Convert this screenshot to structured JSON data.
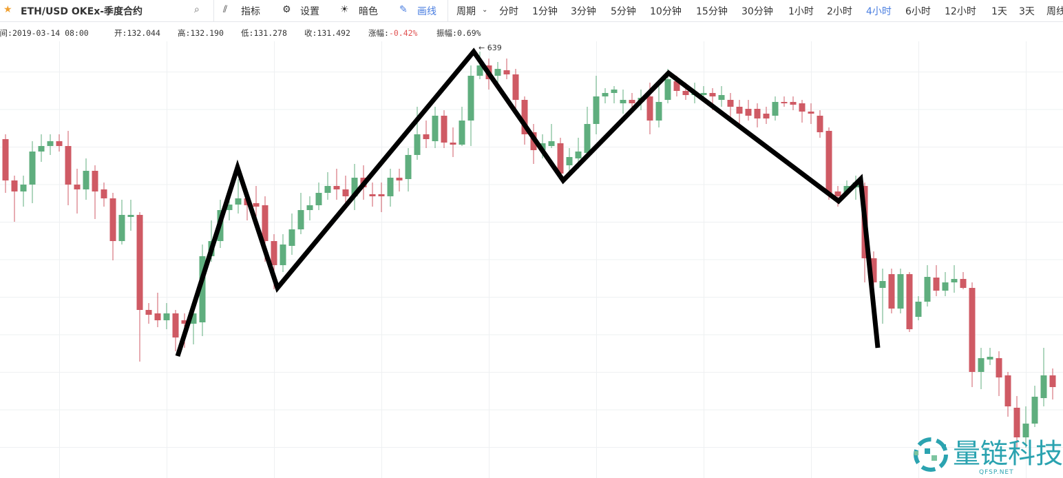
{
  "toolbar": {
    "symbol": "ETH/USD OKEx-季度合约",
    "tools": [
      "指标",
      "设置",
      "暗色",
      "画线"
    ],
    "period_label": "周期",
    "periods": [
      "分时",
      "1分钟",
      "3分钟",
      "5分钟",
      "10分钟",
      "15分钟",
      "30分钟",
      "1小时",
      "2小时",
      "4小时",
      "6小时",
      "12小时",
      "1天",
      "3天",
      "周线"
    ]
  },
  "info": [
    {
      "label": "时间:",
      "value": "2019-03-14 08:00"
    },
    {
      "label": "开:",
      "value": "132.044"
    },
    {
      "label": "高:",
      "value": "132.190"
    },
    {
      "label": "低:",
      "value": "131.278"
    },
    {
      "label": "收:",
      "value": "131.492"
    },
    {
      "label": "涨幅:",
      "value": "-0.42%"
    },
    {
      "label": "振幅:",
      "value": "0.69%"
    }
  ],
  "chart_data": {
    "type": "candlestick",
    "ylim": [
      127.12,
      139.8
    ],
    "up_color": "#5fae7e",
    "down_color": "#cf5a64",
    "max_label": "← 639",
    "candles": [
      [
        136.96,
        137.1,
        135.4,
        135.76
      ],
      [
        135.76,
        135.9,
        134.56,
        135.44
      ],
      [
        135.44,
        135.9,
        135,
        135.64
      ],
      [
        135.64,
        136.9,
        135.1,
        136.6
      ],
      [
        136.6,
        137.1,
        136.3,
        136.76
      ],
      [
        136.76,
        137.1,
        136.5,
        136.9
      ],
      [
        136.9,
        137.1,
        136.6,
        136.76
      ],
      [
        136.76,
        137.2,
        135.04,
        135.64
      ],
      [
        135.64,
        136.1,
        134.8,
        135.5
      ],
      [
        135.5,
        136.4,
        135.2,
        136.04
      ],
      [
        136.04,
        136.2,
        134.64,
        135.44
      ],
      [
        135.5,
        135.7,
        135,
        135.24
      ],
      [
        135.24,
        135.4,
        133.44,
        134
      ],
      [
        134,
        135.2,
        133.9,
        134.76
      ],
      [
        134.7,
        135.2,
        134.3,
        134.76
      ],
      [
        134.76,
        134.84,
        130.5,
        132
      ],
      [
        132,
        132.2,
        131.6,
        131.86
      ],
      [
        131.9,
        132.5,
        131.5,
        131.7
      ],
      [
        131.7,
        132.2,
        131.44,
        131.9
      ],
      [
        131.9,
        132,
        130.8,
        131.2
      ],
      [
        131.7,
        131.9,
        130.9,
        131.6
      ],
      [
        131.6,
        132.1,
        131,
        131.9
      ],
      [
        131.64,
        133.9,
        131.24,
        133.56
      ],
      [
        133.56,
        134.6,
        133.4,
        134
      ],
      [
        134,
        135.2,
        133.8,
        134.9
      ],
      [
        134.9,
        135.5,
        134.6,
        135.06
      ],
      [
        135.06,
        135.8,
        134.8,
        135.24
      ],
      [
        135.24,
        135.5,
        134.6,
        135.04
      ],
      [
        135.1,
        135.6,
        134.7,
        135
      ],
      [
        135.04,
        135.3,
        133.4,
        134
      ],
      [
        134,
        134.2,
        132.6,
        133.3
      ],
      [
        133.3,
        134.2,
        133.1,
        133.9
      ],
      [
        133.86,
        134.8,
        133.6,
        134.34
      ],
      [
        134.34,
        135.4,
        134.2,
        134.9
      ],
      [
        134.9,
        135.3,
        134.6,
        135.04
      ],
      [
        135.04,
        135.7,
        134.9,
        135.4
      ],
      [
        135.4,
        136,
        135.2,
        135.6
      ],
      [
        135.6,
        136.1,
        135.2,
        135.5
      ],
      [
        135.5,
        135.9,
        135,
        135.3
      ],
      [
        135.3,
        136.24,
        134.9,
        135.84
      ],
      [
        135.84,
        136.2,
        135.2,
        135.56
      ],
      [
        135.36,
        135.7,
        135,
        135.3
      ],
      [
        135.36,
        135.7,
        134.84,
        135.3
      ],
      [
        135.3,
        136.1,
        135,
        135.84
      ],
      [
        135.84,
        136.1,
        135.44,
        135.76
      ],
      [
        135.8,
        136.7,
        135.44,
        136.5
      ],
      [
        136.5,
        137.9,
        136.36,
        137.1
      ],
      [
        137.1,
        137.5,
        136.7,
        136.96
      ],
      [
        136.9,
        137.9,
        136.7,
        137.64
      ],
      [
        137.64,
        137.8,
        136.7,
        136.86
      ],
      [
        136.86,
        137.3,
        136.44,
        136.8
      ],
      [
        136.8,
        137.9,
        136.76,
        137.5
      ],
      [
        137.5,
        139.1,
        136.76,
        138.8
      ],
      [
        138.8,
        139.5,
        138.7,
        139.1
      ],
      [
        139.1,
        139.3,
        138.4,
        138.7
      ],
      [
        138.8,
        139.2,
        138.6,
        139
      ],
      [
        138.96,
        139.3,
        138.7,
        138.84
      ],
      [
        138.84,
        139,
        137.8,
        138.1
      ],
      [
        138.1,
        138.2,
        136.8,
        137.1
      ],
      [
        137.16,
        137.4,
        136.24,
        136.64
      ],
      [
        136.64,
        137.1,
        136.4,
        136.84
      ],
      [
        136.76,
        137.4,
        136.7,
        136.9
      ],
      [
        136.84,
        137,
        135.8,
        135.96
      ],
      [
        136.2,
        136.7,
        136,
        136.44
      ],
      [
        136.4,
        137,
        136.1,
        136.6
      ],
      [
        136.56,
        137.9,
        136.4,
        137.4
      ],
      [
        137.4,
        138.8,
        137.1,
        138.2
      ],
      [
        138.2,
        138.44,
        138,
        138.3
      ],
      [
        138.3,
        138.5,
        138,
        138.4
      ],
      [
        138,
        138.4,
        137.7,
        138.1
      ],
      [
        138.1,
        138.3,
        137.8,
        138
      ],
      [
        138.04,
        138.4,
        137.8,
        138.16
      ],
      [
        138.2,
        138.6,
        137.1,
        137.5
      ],
      [
        137.5,
        138.6,
        137.3,
        138.04
      ],
      [
        138.1,
        139,
        138,
        138.7
      ],
      [
        138.64,
        138.8,
        138.2,
        138.36
      ],
      [
        138.36,
        138.6,
        138.1,
        138.24
      ],
      [
        138.24,
        138.6,
        138,
        138.3
      ],
      [
        138.24,
        138.5,
        138.1,
        138.3
      ],
      [
        138.3,
        138.44,
        137.8,
        138.2
      ],
      [
        138.1,
        138.5,
        137.9,
        138.24
      ],
      [
        138.1,
        138.3,
        137.6,
        137.9
      ],
      [
        137.9,
        138.1,
        137.4,
        137.7
      ],
      [
        137.84,
        138.1,
        137.5,
        137.64
      ],
      [
        137.84,
        138,
        137.3,
        137.56
      ],
      [
        137.7,
        137.9,
        137.4,
        137.56
      ],
      [
        137.64,
        138.2,
        137.5,
        138.04
      ],
      [
        138.04,
        138.2,
        137.9,
        138
      ],
      [
        138.04,
        138.2,
        137.8,
        137.96
      ],
      [
        138,
        138.1,
        137.44,
        137.76
      ],
      [
        137.76,
        138,
        137.4,
        137.7
      ],
      [
        137.64,
        137.8,
        137,
        137.16
      ],
      [
        137.2,
        137.3,
        135.2,
        135.4
      ],
      [
        135.44,
        135.6,
        135,
        135.3
      ],
      [
        135.4,
        135.76,
        135.3,
        135.6
      ],
      [
        135.56,
        135.9,
        135.2,
        135.7
      ],
      [
        135.6,
        135.7,
        132.8,
        133.5
      ],
      [
        133.5,
        133.7,
        132.1,
        132.8
      ],
      [
        132.64,
        133.2,
        131.6,
        132.84
      ],
      [
        133.04,
        133.2,
        131.9,
        132.04
      ],
      [
        132.04,
        133.2,
        131.9,
        133.04
      ],
      [
        133.04,
        133.1,
        131.36,
        131.44
      ],
      [
        131.8,
        132.4,
        131.7,
        132.24
      ],
      [
        132.24,
        133.3,
        132.1,
        132.96
      ],
      [
        132.94,
        133.3,
        132.4,
        132.56
      ],
      [
        132.56,
        133.1,
        132.4,
        132.8
      ],
      [
        132.8,
        133.3,
        132.5,
        132.9
      ],
      [
        132.9,
        133.1,
        132.6,
        132.64
      ],
      [
        132.64,
        132.8,
        129.76,
        130.2
      ],
      [
        130.2,
        130.9,
        129.7,
        130.6
      ],
      [
        130.56,
        130.9,
        130.4,
        130.64
      ],
      [
        130.6,
        130.8,
        129.5,
        130.04
      ],
      [
        130.1,
        130.2,
        128.9,
        129.2
      ],
      [
        129.16,
        129.5,
        128,
        128.3
      ],
      [
        128.3,
        129.2,
        128,
        128.7
      ],
      [
        128.7,
        129.8,
        128.6,
        129.48
      ],
      [
        129.44,
        130.9,
        129.2,
        130.1
      ],
      [
        130.1,
        130.3,
        129.4,
        129.76
      ]
    ]
  },
  "watermark": {
    "brand": "量链科技",
    "site": "QFSP.NET"
  }
}
